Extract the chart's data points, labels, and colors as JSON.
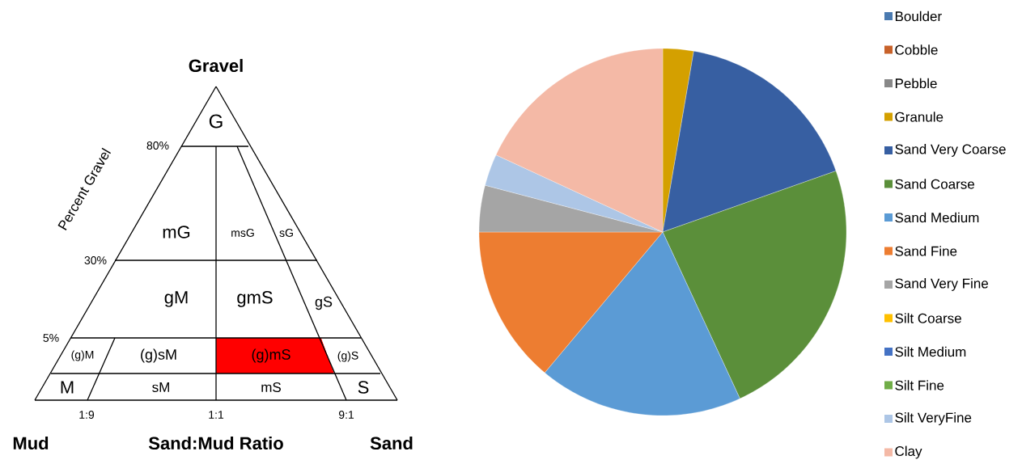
{
  "chart_data": [
    {
      "type": "other",
      "title": "Gravel",
      "xlabel": "Sand:Mud Ratio",
      "ylabel": "Percent Gravel",
      "categories": [
        "G",
        "mG",
        "msG",
        "sG",
        "gM",
        "gmS",
        "gS",
        "(g)M",
        "(g)sM",
        "(g)mS",
        "(g)S",
        "M",
        "sM",
        "mS",
        "S"
      ],
      "colors": [
        "#ffffff",
        "#ffffff",
        "#ffffff",
        "#ffffff",
        "#ffffff",
        "#ffffff",
        "#ffffff",
        "#ffffff",
        "#ffffff",
        "#ff0000",
        "#ffffff",
        "#ffffff",
        "#ffffff",
        "#ffffff",
        "#ffffff"
      ],
      "annotations": [
        "80%",
        "30%",
        "5%",
        "1:9",
        "1:1",
        "9:1",
        "Mud",
        "Sand"
      ]
    },
    {
      "type": "pie",
      "categories": [
        "Boulder",
        "Cobble",
        "Pebble",
        "Granule",
        "Sand Very Coarse",
        "Sand Coarse",
        "Sand Medium",
        "Sand Fine",
        "Sand Very Fine",
        "Silt Coarse",
        "Silt Medium",
        "Silt Fine",
        "Silt VeryFine",
        "Clay"
      ],
      "values": [
        0,
        0,
        0,
        2.7,
        16.9,
        23.5,
        18.0,
        13.9,
        4.1,
        0,
        0,
        0,
        2.8,
        18.1
      ],
      "colors": [
        "#4a7ab0",
        "#c8622a",
        "#888888",
        "#d4a000",
        "#375fa2",
        "#5b8f3a",
        "#5b9bd5",
        "#ed7d31",
        "#a5a5a5",
        "#ffc000",
        "#4472c4",
        "#70ad47",
        "#adc6e6",
        "#f4b9a6"
      ],
      "legend": "right"
    }
  ]
}
